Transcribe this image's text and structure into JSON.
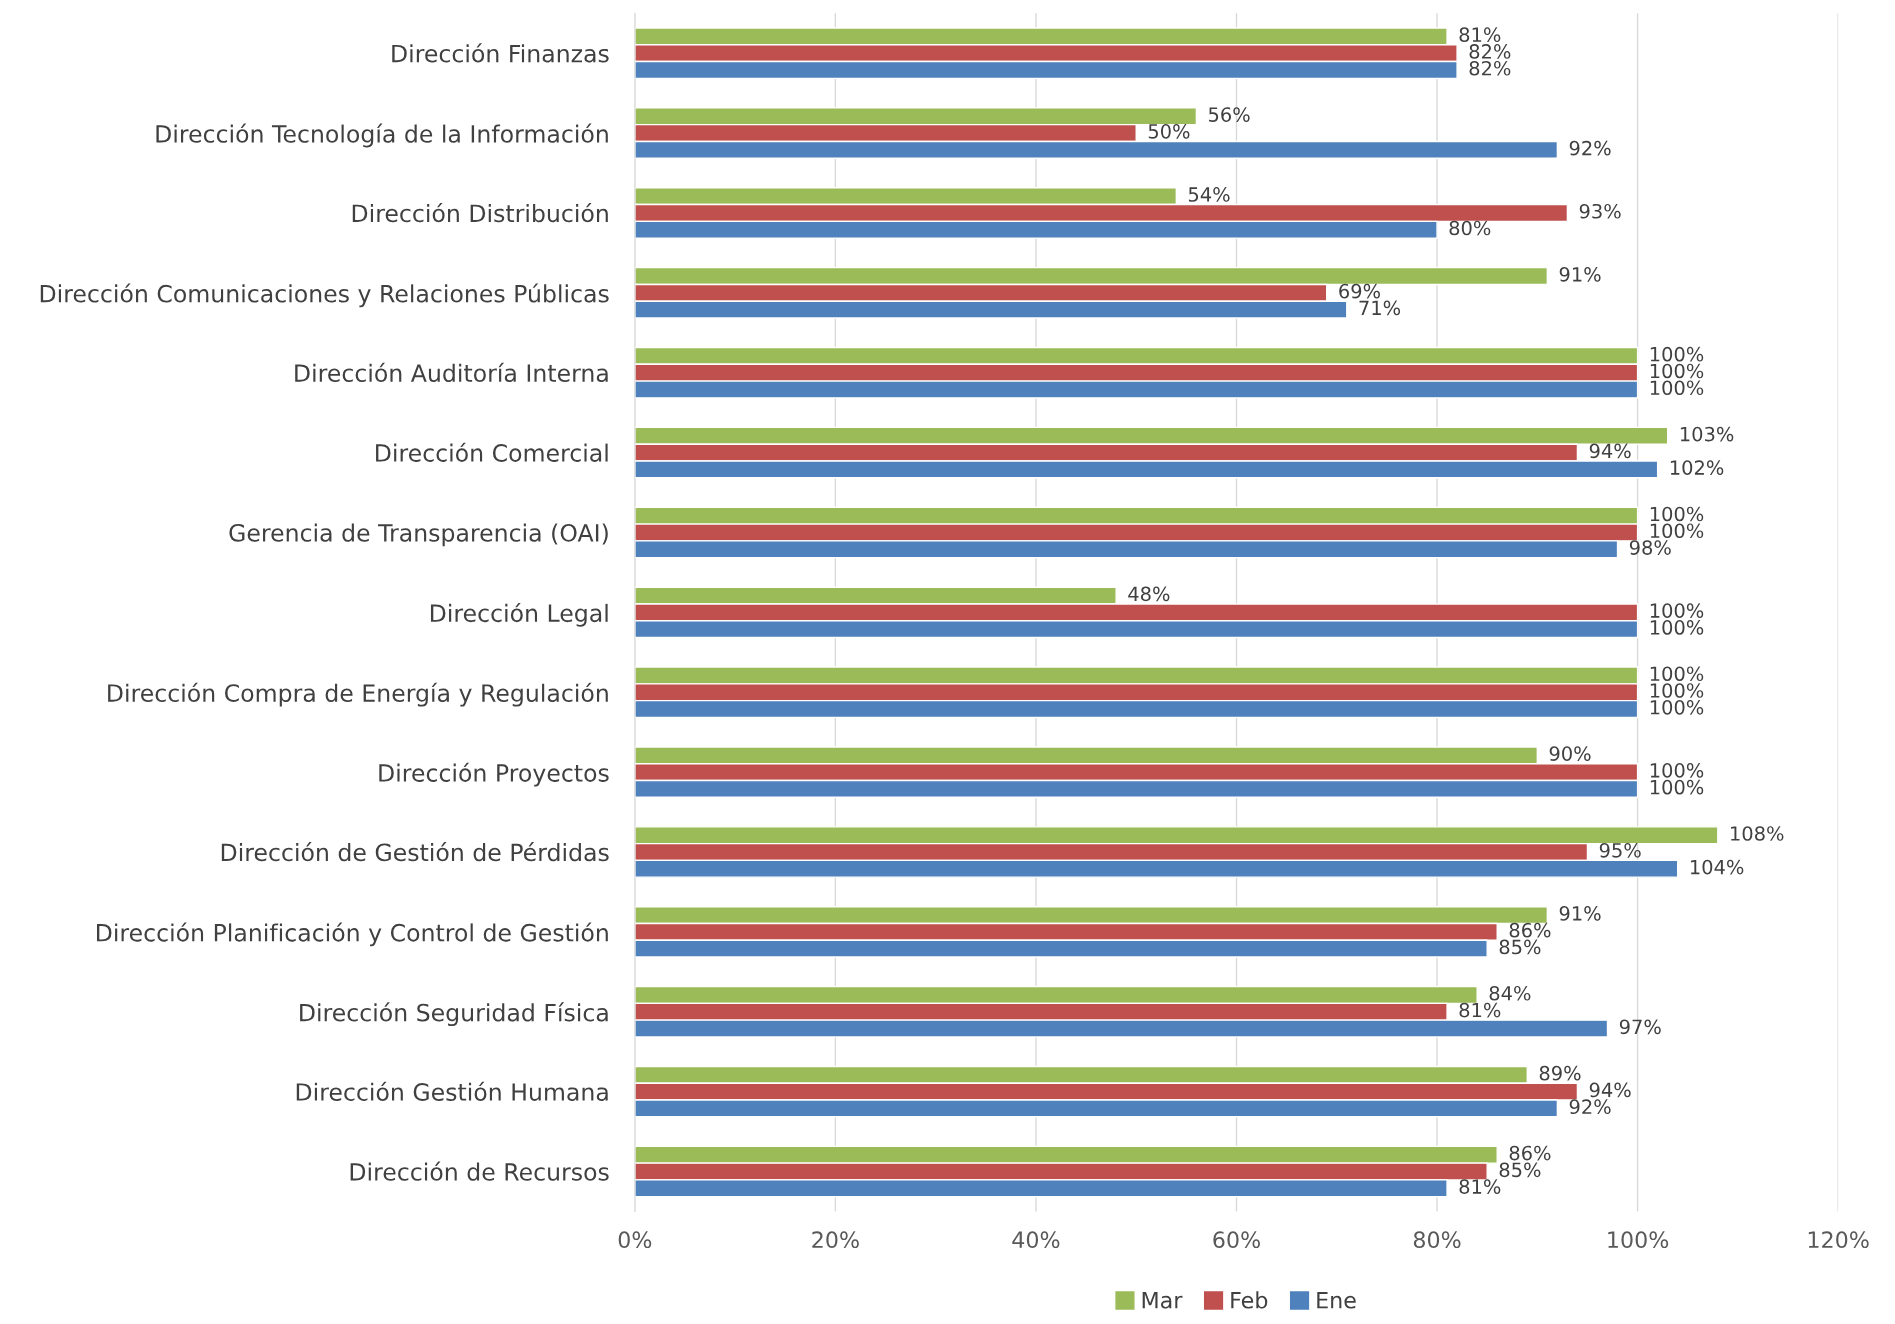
{
  "chart_data": {
    "type": "bar",
    "orientation": "horizontal",
    "categories": [
      "Dirección Finanzas",
      "Dirección Tecnología de la Información",
      "Dirección Distribución",
      "Dirección Comunicaciones y Relaciones Públicas",
      "Dirección Auditoría Interna",
      "Dirección Comercial",
      "Gerencia de Transparencia (OAI)",
      "Dirección Legal",
      "Dirección Compra de Energía y Regulación",
      "Dirección Proyectos",
      "Dirección de Gestión de Pérdidas",
      "Dirección Planificación y Control de Gestión",
      "Dirección Seguridad Física",
      "Dirección Gestión Humana",
      "Dirección de Recursos"
    ],
    "series": [
      {
        "name": "Mar",
        "color": "#9bbb59",
        "values": [
          81,
          56,
          54,
          91,
          100,
          103,
          100,
          48,
          100,
          90,
          108,
          91,
          84,
          89,
          86
        ],
        "value_labels": [
          "81%",
          "56%",
          "54%",
          "91%",
          "100%",
          "103%",
          "100%",
          "48%",
          "100%",
          "90%",
          "108%",
          "91%",
          "84%",
          "89%",
          "86%"
        ]
      },
      {
        "name": "Feb",
        "color": "#c0504d",
        "values": [
          82,
          50,
          93,
          69,
          100,
          94,
          100,
          100,
          100,
          100,
          95,
          86,
          81,
          94,
          85
        ],
        "value_labels": [
          "82%",
          "50%",
          "93%",
          "69%",
          "100%",
          "94%",
          "100%",
          "100%",
          "100%",
          "100%",
          "95%",
          "86%",
          "81%",
          "94%",
          "85%"
        ]
      },
      {
        "name": "Ene",
        "color": "#4f81bd",
        "values": [
          82,
          92,
          80,
          71,
          100,
          102,
          98,
          100,
          100,
          100,
          104,
          85,
          97,
          92,
          81
        ],
        "value_labels": [
          "82%",
          "92%",
          "80%",
          "71%",
          "100%",
          "102%",
          "98%",
          "100%",
          "100%",
          "100%",
          "104%",
          "85%",
          "97%",
          "92%",
          "81%"
        ]
      }
    ],
    "xlim": [
      0,
      120
    ],
    "xticks": [
      {
        "value": 0,
        "label": "0%"
      },
      {
        "value": 20,
        "label": "20%"
      },
      {
        "value": 40,
        "label": "40%"
      },
      {
        "value": 60,
        "label": "60%"
      },
      {
        "value": 80,
        "label": "80%"
      },
      {
        "value": 100,
        "label": "100%"
      },
      {
        "value": 120,
        "label": "120%"
      }
    ],
    "grid": "x",
    "legend": "bottom"
  }
}
